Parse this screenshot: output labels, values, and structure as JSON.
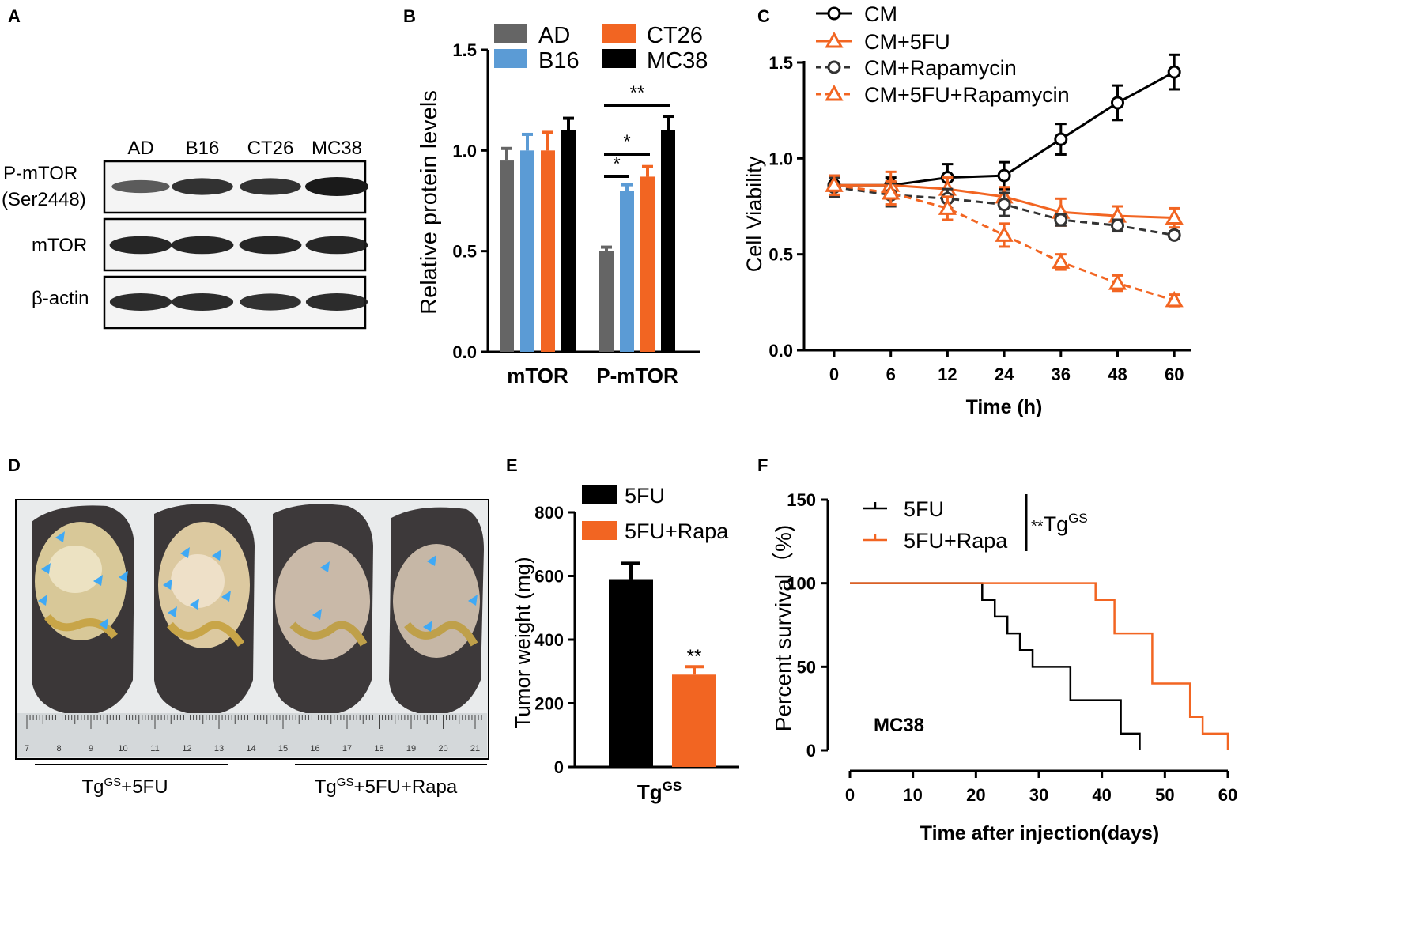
{
  "panels": {
    "A": {
      "letter": "A",
      "lanes": [
        "AD",
        "B16",
        "CT26",
        "MC38"
      ],
      "rows": [
        {
          "label_lines": [
            "P-mTOR",
            "(Ser2448)"
          ],
          "intensity": [
            0.45,
            0.8,
            0.8,
            1.0
          ]
        },
        {
          "label_lines": [
            "mTOR"
          ],
          "intensity": [
            0.9,
            0.9,
            0.9,
            0.9
          ]
        },
        {
          "label_lines": [
            "β-actin"
          ],
          "intensity": [
            0.85,
            0.85,
            0.8,
            0.85
          ]
        }
      ]
    },
    "D": {
      "letter": "D",
      "group1": {
        "base": "Tg",
        "sup": "GS",
        "rest": "+5FU"
      },
      "group2": {
        "base": "Tg",
        "sup": "GS",
        "rest": "+5FU+Rapa"
      },
      "ruler_numbers": [
        "7",
        "8",
        "9",
        "10",
        "11",
        "12",
        "13",
        "14",
        "15",
        "16",
        "17",
        "18",
        "19",
        "20",
        "21"
      ]
    }
  },
  "colors": {
    "AD": "#656565",
    "B16": "#5b9bd5",
    "CT26": "#f26522",
    "MC38": "#000000",
    "black": "#000000",
    "orange": "#f26522"
  },
  "chart_data": [
    {
      "panel": "B",
      "type": "bar",
      "categories": [
        "mTOR",
        "P-mTOR"
      ],
      "series": [
        {
          "name": "AD",
          "values": [
            0.95,
            0.5
          ],
          "errors": [
            0.06,
            0.02
          ]
        },
        {
          "name": "B16",
          "values": [
            1.0,
            0.8
          ],
          "errors": [
            0.08,
            0.03
          ]
        },
        {
          "name": "CT26",
          "values": [
            1.0,
            0.87
          ],
          "errors": [
            0.09,
            0.05
          ]
        },
        {
          "name": "MC38",
          "values": [
            1.1,
            1.1
          ],
          "errors": [
            0.06,
            0.07
          ]
        }
      ],
      "ylabel": "Relative protein levels",
      "ylim": [
        0,
        1.5
      ],
      "yticks": [
        "0.0",
        "0.5",
        "1.0",
        "1.5"
      ],
      "significance": [
        {
          "from": "AD",
          "to": "B16",
          "category": "P-mTOR",
          "label": "*"
        },
        {
          "from": "AD",
          "to": "CT26",
          "category": "P-mTOR",
          "label": "*"
        },
        {
          "from": "AD",
          "to": "MC38",
          "category": "P-mTOR",
          "label": "**"
        }
      ]
    },
    {
      "panel": "C",
      "type": "line",
      "x": [
        0,
        6,
        12,
        24,
        36,
        48,
        60
      ],
      "x_ticks": [
        "0",
        "6",
        "12",
        "24",
        "36",
        "48",
        "60"
      ],
      "xlabel": "Time  (h)",
      "ylabel": "Cell Viability",
      "ylim": [
        0,
        1.5
      ],
      "yticks": [
        "0.0",
        "0.5",
        "1.0",
        "1.5"
      ],
      "series": [
        {
          "name": "CM",
          "values": [
            0.86,
            0.86,
            0.9,
            0.91,
            1.1,
            1.29,
            1.45
          ],
          "errors": [
            0.05,
            0.04,
            0.07,
            0.07,
            0.08,
            0.09,
            0.09
          ],
          "style": "solid",
          "marker": "circle",
          "color": "#000000"
        },
        {
          "name": "CM+5FU",
          "values": [
            0.86,
            0.86,
            0.84,
            0.8,
            0.72,
            0.7,
            0.69
          ],
          "errors": [
            0.05,
            0.07,
            0.06,
            0.05,
            0.07,
            0.05,
            0.05
          ],
          "style": "solid",
          "marker": "triangle",
          "color": "#f26522"
        },
        {
          "name": "CM+Rapamycin",
          "values": [
            0.85,
            0.81,
            0.79,
            0.76,
            0.68,
            0.65,
            0.6
          ],
          "errors": [
            0.05,
            0.06,
            0.05,
            0.06,
            0.03,
            0.03,
            0.02
          ],
          "style": "dashed",
          "marker": "circle",
          "color": "#333333"
        },
        {
          "name": "CM+5FU+Rapamycin",
          "values": [
            0.86,
            0.82,
            0.74,
            0.6,
            0.46,
            0.35,
            0.26
          ],
          "errors": [
            0.05,
            0.06,
            0.06,
            0.06,
            0.04,
            0.04,
            0.03
          ],
          "style": "dashed",
          "marker": "triangle",
          "color": "#f26522"
        }
      ]
    },
    {
      "panel": "E",
      "type": "bar",
      "categories": [
        "TgGS"
      ],
      "category_label": {
        "base": "Tg",
        "sup": "GS"
      },
      "series": [
        {
          "name": "5FU",
          "values": [
            590
          ],
          "errors": [
            50
          ]
        },
        {
          "name": "5FU+Rapa",
          "values": [
            290
          ],
          "errors": [
            25
          ]
        }
      ],
      "ylabel": "Tumor weight (mg)",
      "ylim": [
        0,
        800
      ],
      "yticks": [
        "0",
        "200",
        "400",
        "600",
        "800"
      ],
      "significance_label": "**"
    },
    {
      "panel": "F",
      "type": "line",
      "step": true,
      "xlabel": "Time after injection(days)",
      "ylabel": "Percent survival（%)",
      "xlim": [
        0,
        60
      ],
      "ylim": [
        0,
        150
      ],
      "x_ticks": [
        "0",
        "10",
        "20",
        "30",
        "40",
        "50",
        "60"
      ],
      "yticks": [
        "0",
        "50",
        "100",
        "150"
      ],
      "annotation": "MC38",
      "significance": {
        "label": "**",
        "base": "Tg",
        "sup": "GS"
      },
      "series": [
        {
          "name": "5FU",
          "color": "#000000",
          "x": [
            0,
            21,
            23,
            25,
            27,
            29,
            35,
            43,
            46
          ],
          "y": [
            100,
            90,
            80,
            70,
            60,
            50,
            30,
            10,
            0
          ]
        },
        {
          "name": "5FU+Rapa",
          "color": "#f26522",
          "x": [
            0,
            39,
            42,
            48,
            54,
            56,
            60
          ],
          "y": [
            100,
            90,
            70,
            40,
            20,
            10,
            0
          ]
        }
      ]
    }
  ]
}
